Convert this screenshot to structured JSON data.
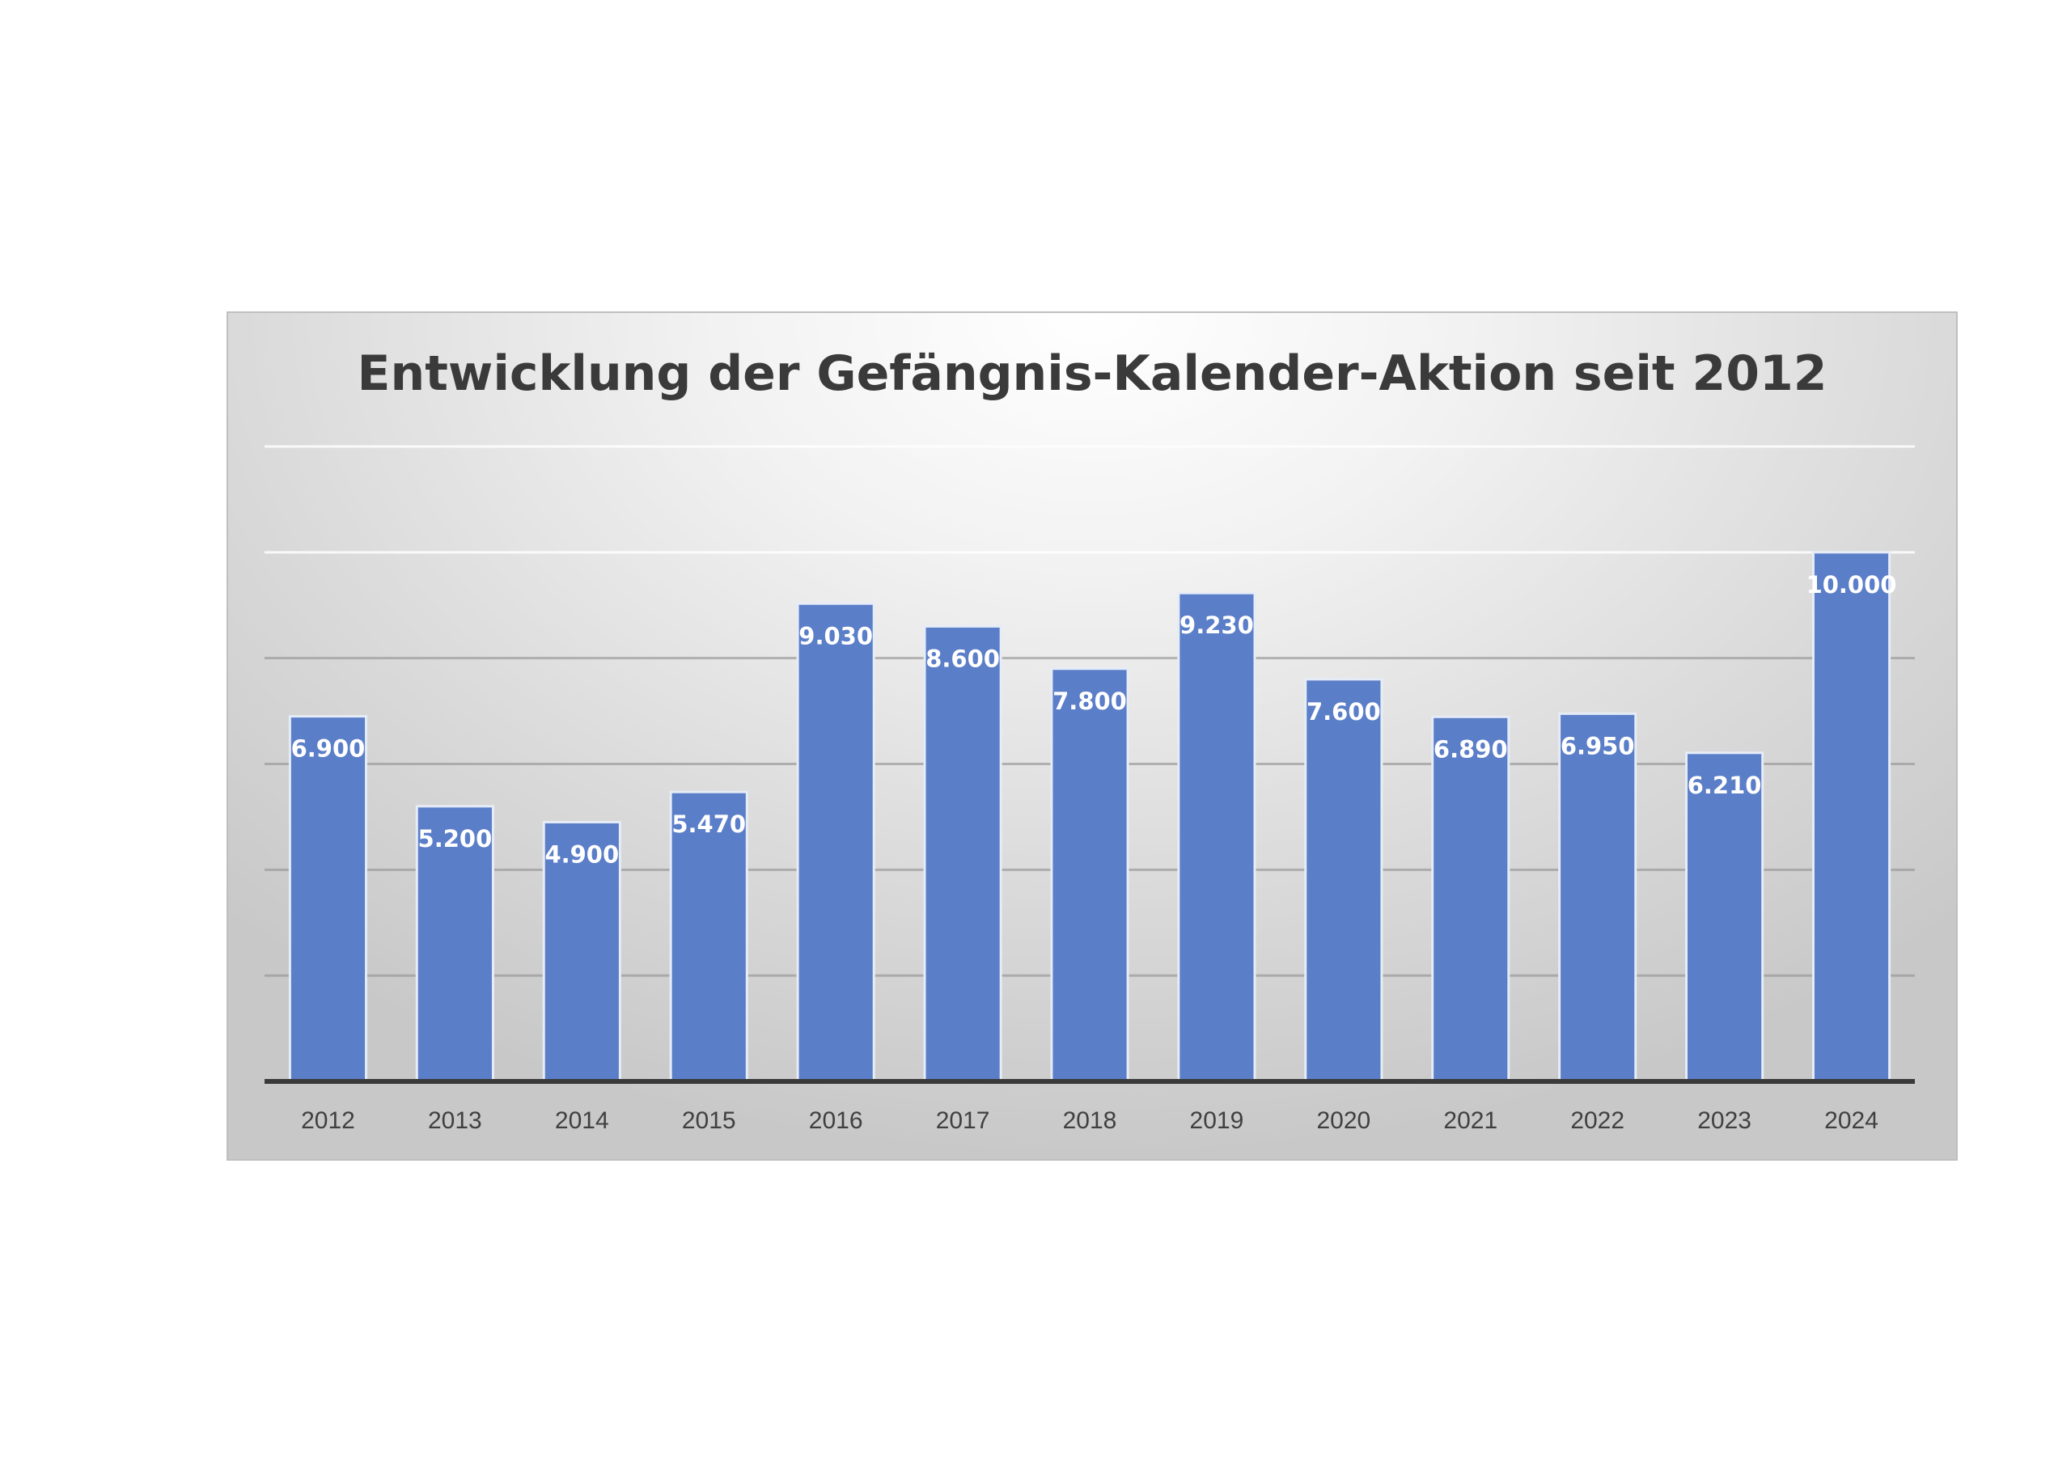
{
  "chart_data": {
    "type": "bar",
    "title": "Entwicklung der Gefängnis-Kalender-Aktion seit 2012",
    "categories": [
      "2012",
      "2013",
      "2014",
      "2015",
      "2016",
      "2017",
      "2018",
      "2019",
      "2020",
      "2021",
      "2022",
      "2023",
      "2024"
    ],
    "values": [
      6900,
      5200,
      4900,
      5470,
      9030,
      8600,
      7800,
      9230,
      7600,
      6890,
      6950,
      6210,
      10000
    ],
    "data_labels": [
      "6.900",
      "5.200",
      "4.900",
      "5.470",
      "9.030",
      "8.600",
      "7.800",
      "9.230",
      "7.600",
      "6.890",
      "6.950",
      "6.210",
      "10.000"
    ],
    "xlabel": "",
    "ylabel": "",
    "ylim": [
      0,
      12000
    ],
    "ytick_step": 2000,
    "y_tick_labels_shown": false,
    "grid": true,
    "legend": "none",
    "colors": {
      "bar": "#5b7ec8",
      "title": "#3a3a3a"
    }
  }
}
